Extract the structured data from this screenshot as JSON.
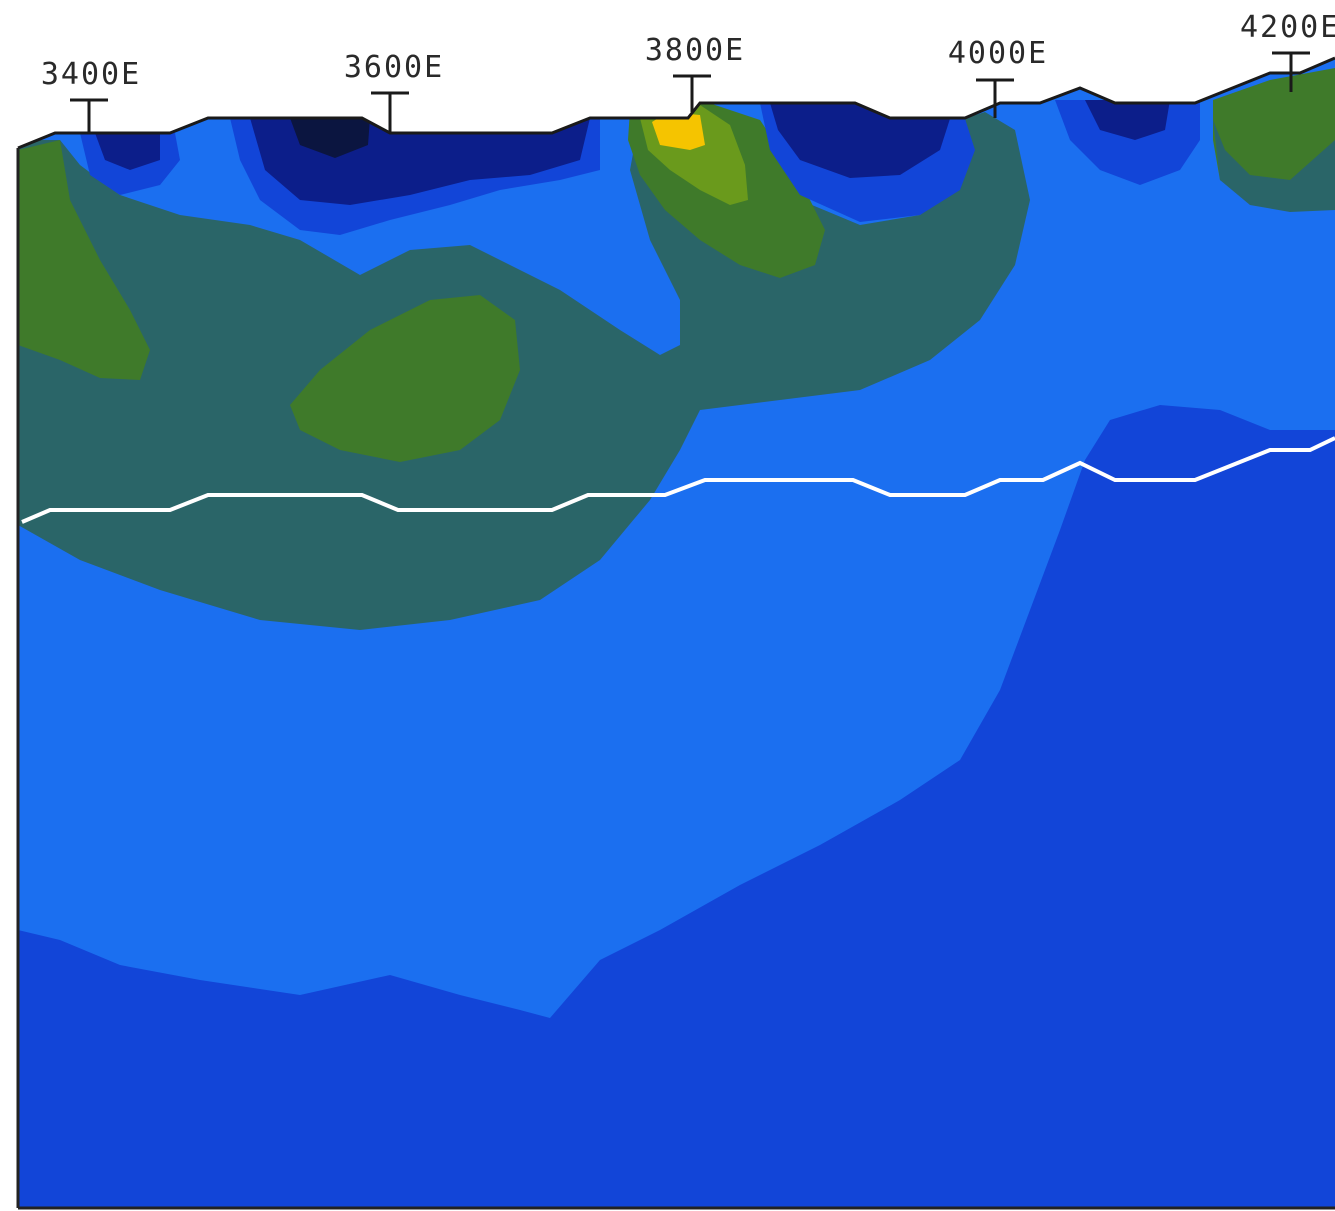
{
  "section": {
    "stations": [
      {
        "label": "3400E"
      },
      {
        "label": "3600E"
      },
      {
        "label": "3800E"
      },
      {
        "label": "4000E"
      },
      {
        "label": "4200E"
      }
    ],
    "colors": {
      "very_high": "#f5c400",
      "high": "#6a9a1c",
      "mid_high": "#3f7a2a",
      "mid": "#2a6568",
      "low": "#1b6ff0",
      "lower": "#1245d8",
      "very_low": "#0c1e8a",
      "lowest": "#0b1540",
      "marker_line": "#ffffff",
      "topography": "#1a1a1a"
    }
  }
}
